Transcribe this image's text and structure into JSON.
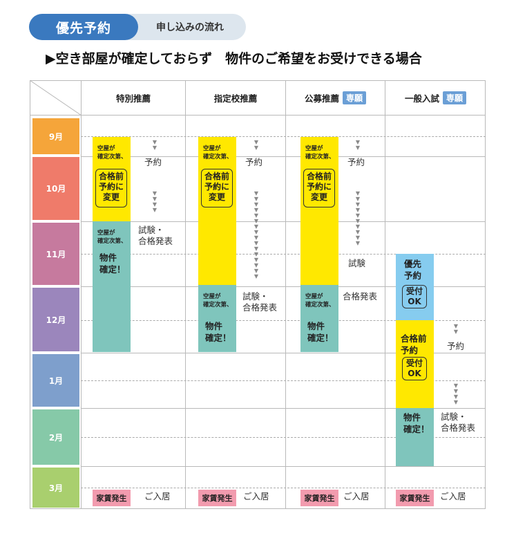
{
  "header": {
    "pill_main": "優先予約",
    "pill_sub": "申し込みの流れ",
    "subtitle": "▶空き部屋が確定しておらず　物件のご希望をお受けできる場合"
  },
  "columns": [
    {
      "label": "特別推薦",
      "tag": ""
    },
    {
      "label": "指定校推薦",
      "tag": ""
    },
    {
      "label": "公募推薦",
      "tag": "専願"
    },
    {
      "label": "一般入試",
      "tag": "専願"
    }
  ],
  "months": [
    {
      "label": "9月",
      "color": "#f5a53a"
    },
    {
      "label": "10月",
      "color": "#ef7b6a"
    },
    {
      "label": "11月",
      "color": "#c67a9e"
    },
    {
      "label": "12月",
      "color": "#9b86bc"
    },
    {
      "label": "1月",
      "color": "#7e9fcc"
    },
    {
      "label": "2月",
      "color": "#86c9a8"
    },
    {
      "label": "3月",
      "color": "#a9cf6e"
    }
  ],
  "texts": {
    "vacancy_1": "空屋が",
    "vacancy_2": "確定次第、",
    "reserve": "予約",
    "change_1": "合格前",
    "change_2": "予約に",
    "change_3": "変更",
    "exam_1": "試験・",
    "exam_2": "合格発表",
    "exam_only": "試験",
    "result_only": "合格発表",
    "prop_1": "物件",
    "prop_2": "確定！",
    "priority_1": "優先",
    "priority_2": "予約",
    "accept_1": "受付",
    "accept_2": "OK",
    "prepass_1": "合格前",
    "prepass_2": "予約",
    "rent": "家賃発生",
    "move_in": "ご入居"
  },
  "colors": {
    "yellow": "#ffe800",
    "teal": "#7fc5bc",
    "blue": "#86ccef",
    "pink": "#f29bae",
    "brand": "#3a79bf"
  }
}
